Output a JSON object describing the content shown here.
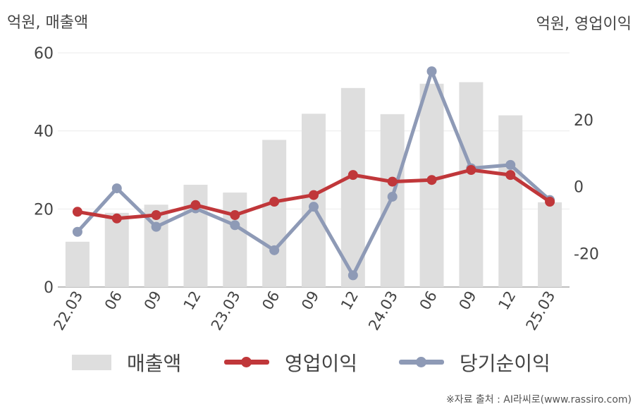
{
  "left_unit": "억원, 매출액",
  "right_unit": "억원, 영업이익",
  "source": "※자료 출처 : AI라씨로(www.rassiro.com)",
  "colors": {
    "bar": "#dedede",
    "operating": "#c0373a",
    "net": "#8e9ab6",
    "grid": "#ebebeb",
    "axis": "#a8a8a8"
  },
  "chart_data": {
    "type": "bar+line",
    "categories": [
      "22.03",
      "06",
      "09",
      "12",
      "23.03",
      "06",
      "09",
      "12",
      "24.03",
      "06",
      "09",
      "12",
      "25.03"
    ],
    "left_axis": {
      "ylim": [
        0,
        60
      ],
      "ticks": [
        0,
        20,
        40,
        60
      ]
    },
    "right_axis": {
      "ylim": [
        -30,
        40
      ],
      "ticks": [
        -20,
        0,
        20
      ]
    },
    "series": [
      {
        "name": "매출액",
        "kind": "bar",
        "axis": "left",
        "values": [
          11.6,
          19.0,
          21.1,
          26.2,
          24.2,
          37.7,
          44.4,
          51.0,
          44.3,
          52.1,
          52.5,
          44.0,
          21.7
        ]
      },
      {
        "name": "영업이익",
        "kind": "line",
        "axis": "right",
        "values": [
          -7.5,
          -9.5,
          -8.5,
          -5.5,
          -8.5,
          -4.5,
          -2.5,
          3.5,
          1.5,
          2.0,
          5.0,
          3.5,
          -4.5
        ]
      },
      {
        "name": "당기순이익",
        "kind": "line",
        "axis": "right",
        "values": [
          -13.5,
          -0.5,
          -12.0,
          -6.5,
          -11.5,
          -19.0,
          -6.0,
          -26.5,
          -3.0,
          34.5,
          5.5,
          6.5,
          -4.0
        ]
      }
    ],
    "legend": "bottom",
    "grid": true
  }
}
